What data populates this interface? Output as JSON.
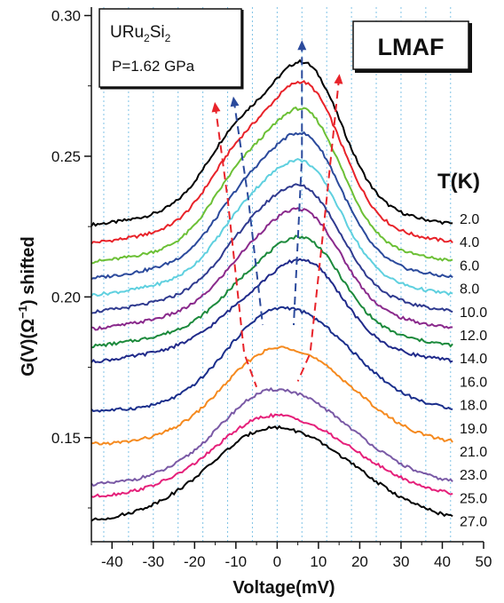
{
  "chart_data": {
    "type": "line",
    "xlabel": "Voltage(mV)",
    "ylabel_main": "G(V)(Ω",
    "ylabel_exp": "−1",
    "ylabel_end": ") shifted",
    "xlim": [
      -45,
      50
    ],
    "ylim": [
      0.113,
      0.303
    ],
    "xticks": [
      -40,
      -30,
      -20,
      -10,
      0,
      10,
      20,
      30,
      40,
      50
    ],
    "yticks": [
      0.15,
      0.2,
      0.25,
      0.3
    ],
    "ytick_labels": [
      "0.15",
      "0.20",
      "0.25",
      "0.30"
    ],
    "grid_x": [
      -42,
      -36,
      -30,
      -24,
      -18,
      -12,
      -6,
      0,
      6,
      12,
      18,
      24,
      30,
      36,
      42
    ],
    "grid": "vertical dotted",
    "legend_title": "T(K)",
    "sample": {
      "name_parts": [
        "URu",
        "2",
        "Si",
        "2"
      ],
      "pressure": "P=1.62 GPa"
    },
    "phase_label": "LMAF",
    "series": [
      {
        "name": "2.0",
        "color": "#000000",
        "offset": 0.2242,
        "lp": 0.021,
        "rp": 0.046,
        "sep": 5.5
      },
      {
        "name": "4.0",
        "color": "#e8232a",
        "offset": 0.2178,
        "lp": 0.02,
        "rp": 0.045,
        "sep": 4.5
      },
      {
        "name": "6.0",
        "color": "#6cc036",
        "offset": 0.211,
        "lp": 0.019,
        "rp": 0.042,
        "sep": 3.5
      },
      {
        "name": "8.0",
        "color": "#2b4a9c",
        "offset": 0.2052,
        "lp": 0.017,
        "rp": 0.039,
        "sep": 2.5
      },
      {
        "name": "10.0",
        "color": "#5fd0df",
        "offset": 0.1992,
        "lp": 0.016,
        "rp": 0.035,
        "sep": 1.5
      },
      {
        "name": "12.0",
        "color": "#2f3a8f",
        "offset": 0.1932,
        "lp": 0.014,
        "rp": 0.032,
        "sep": 0.5
      },
      {
        "name": "14.0",
        "color": "#8a2a8c",
        "offset": 0.1872,
        "lp": 0.012,
        "rp": 0.03,
        "sep": -0.5
      },
      {
        "name": "16.0",
        "color": "#1c8a3c",
        "offset": 0.181,
        "lp": 0.01,
        "rp": 0.027,
        "sep": -1.5
      },
      {
        "name": "18.0",
        "color": "#202a8a",
        "offset": 0.1755,
        "lp": 0.008,
        "rp": 0.025,
        "sep": -2.5
      },
      {
        "name": "19.0",
        "color": "#1b2f8c",
        "offset": 0.1595,
        "lp": 0.02,
        "rp": 0.034,
        "sep": -3.5
      },
      {
        "name": "21.0",
        "color": "#f58a1f",
        "offset": 0.1475,
        "lp": 0.017,
        "rp": 0.032,
        "sep": -4.5
      },
      {
        "name": "23.0",
        "color": "#7a5aa6",
        "offset": 0.133,
        "lp": 0.019,
        "rp": 0.031,
        "sep": -5.5
      },
      {
        "name": "25.0",
        "color": "#e5207a",
        "offset": 0.1285,
        "lp": 0.014,
        "rp": 0.027,
        "sep": -6.5
      },
      {
        "name": "27.0",
        "color": "#000000",
        "offset": 0.1195,
        "lp": 0.012,
        "rp": 0.032,
        "sep": -7.5
      }
    ],
    "guide_lines": [
      {
        "color": "#e8232a",
        "points": [
          [
            -15,
            0.268
          ],
          [
            -12,
            0.235
          ],
          [
            -8,
            0.18
          ],
          [
            -5,
            0.168
          ]
        ]
      },
      {
        "color": "#e8232a",
        "points": [
          [
            15,
            0.278
          ],
          [
            12,
            0.235
          ],
          [
            8,
            0.18
          ],
          [
            5,
            0.17
          ]
        ]
      },
      {
        "color": "#2b4a9c",
        "points": [
          [
            -10.5,
            0.27
          ],
          [
            -7,
            0.235
          ],
          [
            -3.5,
            0.19
          ]
        ]
      },
      {
        "color": "#2b4a9c",
        "points": [
          [
            6,
            0.29
          ],
          [
            6,
            0.25
          ],
          [
            4,
            0.19
          ]
        ]
      }
    ]
  }
}
